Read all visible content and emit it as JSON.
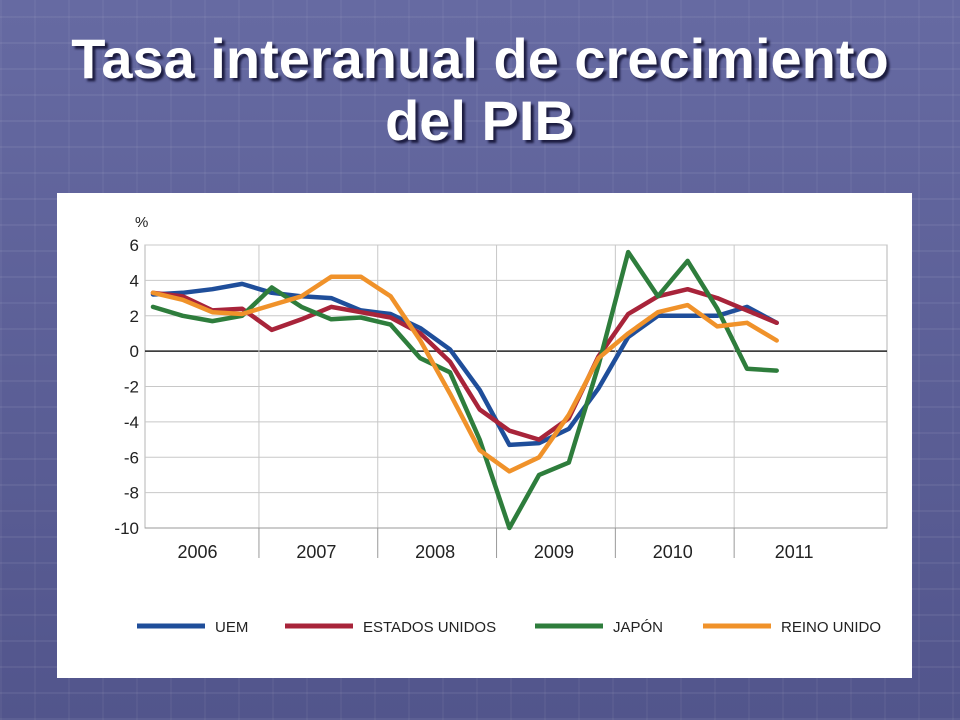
{
  "slide": {
    "title_line1": "Tasa interanual de crecimiento",
    "title_line2": "del PIB"
  },
  "chart_data": {
    "type": "line",
    "ylabel": "%",
    "ylim": [
      -10,
      6
    ],
    "yticks": [
      6,
      4,
      2,
      0,
      -2,
      -4,
      -6,
      -8,
      -10
    ],
    "years": [
      "2006",
      "2007",
      "2008",
      "2009",
      "2010",
      "2011"
    ],
    "x": [
      "2006Q1",
      "2006Q2",
      "2006Q3",
      "2006Q4",
      "2007Q1",
      "2007Q2",
      "2007Q3",
      "2007Q4",
      "2008Q1",
      "2008Q2",
      "2008Q3",
      "2008Q4",
      "2009Q1",
      "2009Q2",
      "2009Q3",
      "2009Q4",
      "2010Q1",
      "2010Q2",
      "2010Q3",
      "2010Q4",
      "2011Q1",
      "2011Q2"
    ],
    "grid": true,
    "legend_position": "bottom",
    "series": [
      {
        "name": "UEM",
        "color": "#1f4e9a",
        "values": [
          3.2,
          3.3,
          3.5,
          3.8,
          3.3,
          3.1,
          3.0,
          2.3,
          2.1,
          1.3,
          0.1,
          -2.2,
          -5.3,
          -5.2,
          -4.4,
          -2.1,
          0.8,
          2.0,
          2.0,
          2.0,
          2.5,
          1.6
        ]
      },
      {
        "name": "ESTADOS UNIDOS",
        "color": "#a8243a",
        "values": [
          3.3,
          3.1,
          2.3,
          2.4,
          1.2,
          1.8,
          2.5,
          2.2,
          1.9,
          1.0,
          -0.6,
          -3.3,
          -4.5,
          -5.0,
          -3.8,
          -0.3,
          2.1,
          3.1,
          3.5,
          3.0,
          2.3,
          1.6
        ]
      },
      {
        "name": "JAPÓN",
        "color": "#2e7d3c",
        "values": [
          2.5,
          2.0,
          1.7,
          2.0,
          3.6,
          2.5,
          1.8,
          1.9,
          1.5,
          -0.4,
          -1.2,
          -5.0,
          -10.0,
          -7.0,
          -6.3,
          -0.8,
          5.6,
          3.1,
          5.1,
          2.4,
          -1.0,
          -1.1
        ]
      },
      {
        "name": "REINO UNIDO",
        "color": "#f0922a",
        "values": [
          3.3,
          2.9,
          2.2,
          2.1,
          2.6,
          3.1,
          4.2,
          4.2,
          3.1,
          0.6,
          -2.4,
          -5.6,
          -6.8,
          -6.0,
          -3.6,
          -0.4,
          1.0,
          2.2,
          2.6,
          1.4,
          1.6,
          0.6
        ]
      }
    ]
  }
}
